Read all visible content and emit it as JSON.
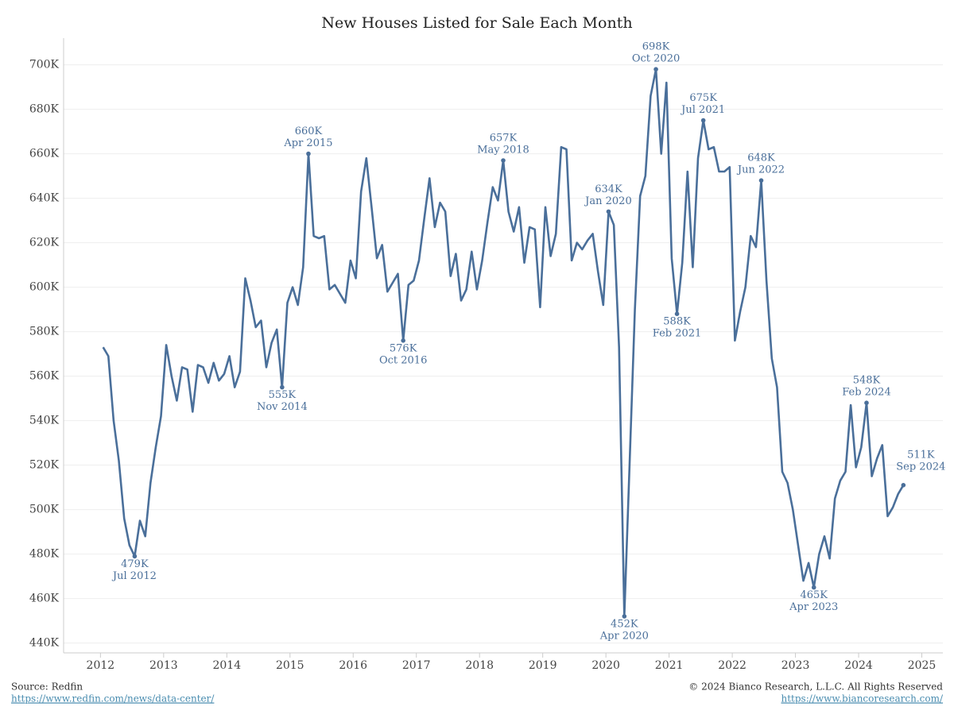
{
  "chart_data": {
    "type": "line",
    "title": "New Houses Listed for Sale Each Month",
    "x": [
      "2012-01",
      "2012-02",
      "2012-03",
      "2012-04",
      "2012-05",
      "2012-06",
      "2012-07",
      "2012-08",
      "2012-09",
      "2012-10",
      "2012-11",
      "2012-12",
      "2013-01",
      "2013-02",
      "2013-03",
      "2013-04",
      "2013-05",
      "2013-06",
      "2013-07",
      "2013-08",
      "2013-09",
      "2013-10",
      "2013-11",
      "2013-12",
      "2014-01",
      "2014-02",
      "2014-03",
      "2014-04",
      "2014-05",
      "2014-06",
      "2014-07",
      "2014-08",
      "2014-09",
      "2014-10",
      "2014-11",
      "2014-12",
      "2015-01",
      "2015-02",
      "2015-03",
      "2015-04",
      "2015-05",
      "2015-06",
      "2015-07",
      "2015-08",
      "2015-09",
      "2015-10",
      "2015-11",
      "2015-12",
      "2016-01",
      "2016-02",
      "2016-03",
      "2016-04",
      "2016-05",
      "2016-06",
      "2016-07",
      "2016-08",
      "2016-09",
      "2016-10",
      "2016-11",
      "2016-12",
      "2017-01",
      "2017-02",
      "2017-03",
      "2017-04",
      "2017-05",
      "2017-06",
      "2017-07",
      "2017-08",
      "2017-09",
      "2017-10",
      "2017-11",
      "2017-12",
      "2018-01",
      "2018-02",
      "2018-03",
      "2018-04",
      "2018-05",
      "2018-06",
      "2018-07",
      "2018-08",
      "2018-09",
      "2018-10",
      "2018-11",
      "2018-12",
      "2019-01",
      "2019-02",
      "2019-03",
      "2019-04",
      "2019-05",
      "2019-06",
      "2019-07",
      "2019-08",
      "2019-09",
      "2019-10",
      "2019-11",
      "2019-12",
      "2020-01",
      "2020-02",
      "2020-03",
      "2020-04",
      "2020-05",
      "2020-06",
      "2020-07",
      "2020-08",
      "2020-09",
      "2020-10",
      "2020-11",
      "2020-12",
      "2021-01",
      "2021-02",
      "2021-03",
      "2021-04",
      "2021-05",
      "2021-06",
      "2021-07",
      "2021-08",
      "2021-09",
      "2021-10",
      "2021-11",
      "2021-12",
      "2022-01",
      "2022-02",
      "2022-03",
      "2022-04",
      "2022-05",
      "2022-06",
      "2022-07",
      "2022-08",
      "2022-09",
      "2022-10",
      "2022-11",
      "2022-12",
      "2023-01",
      "2023-02",
      "2023-03",
      "2023-04",
      "2023-05",
      "2023-06",
      "2023-07",
      "2023-08",
      "2023-09",
      "2023-10",
      "2023-11",
      "2023-12",
      "2024-01",
      "2024-02",
      "2024-03",
      "2024-04",
      "2024-05",
      "2024-06",
      "2024-07",
      "2024-08",
      "2024-09"
    ],
    "series": [
      {
        "color": "#4a6f9a",
        "values": [
          573,
          569,
          540,
          522,
          496,
          484,
          479,
          495,
          488,
          512,
          528,
          542,
          574,
          560,
          549,
          564,
          563,
          544,
          565,
          564,
          557,
          566,
          558,
          561,
          569,
          555,
          562,
          604,
          594,
          582,
          585,
          564,
          575,
          581,
          555,
          593,
          600,
          592,
          609,
          660,
          623,
          622,
          623,
          599,
          601,
          597,
          593,
          612,
          604,
          643,
          658,
          636,
          613,
          619,
          598,
          602,
          606,
          576,
          601,
          603,
          612,
          631,
          649,
          627,
          638,
          634,
          605,
          615,
          594,
          599,
          616,
          599,
          612,
          629,
          645,
          639,
          657,
          634,
          625,
          636,
          611,
          627,
          626,
          591,
          636,
          614,
          624,
          663,
          662,
          612,
          620,
          617,
          621,
          624,
          607,
          592,
          634,
          628,
          573,
          452,
          520,
          590,
          641,
          650,
          686,
          698,
          660,
          692,
          613,
          588,
          611,
          652,
          609,
          658,
          675,
          662,
          663,
          652,
          652,
          654,
          576,
          589,
          600,
          623,
          618,
          648,
          603,
          568,
          555,
          517,
          512,
          500,
          484,
          468,
          476,
          465,
          480,
          488,
          478,
          505,
          513,
          517,
          547,
          519,
          528,
          548,
          515,
          523,
          529,
          497,
          501,
          507,
          511
        ]
      }
    ],
    "annotations": [
      {
        "x": "2012-07",
        "label": "479K",
        "date": "Jul 2012"
      },
      {
        "x": "2014-11",
        "label": "555K",
        "date": "Nov 2014"
      },
      {
        "x": "2015-04",
        "label": "660K",
        "date": "Apr 2015"
      },
      {
        "x": "2016-10",
        "label": "576K",
        "date": "Oct 2016"
      },
      {
        "x": "2018-05",
        "label": "657K",
        "date": "May 2018"
      },
      {
        "x": "2020-01",
        "label": "634K",
        "date": "Jan 2020"
      },
      {
        "x": "2020-04",
        "label": "452K",
        "date": "Apr 2020"
      },
      {
        "x": "2020-10",
        "label": "698K",
        "date": "Oct 2020"
      },
      {
        "x": "2021-02",
        "label": "588K",
        "date": "Feb 2021"
      },
      {
        "x": "2021-07",
        "label": "675K",
        "date": "Jul 2021"
      },
      {
        "x": "2022-06",
        "label": "648K",
        "date": "Jun 2022"
      },
      {
        "x": "2023-04",
        "label": "465K",
        "date": "Apr 2023"
      },
      {
        "x": "2024-02",
        "label": "548K",
        "date": "Feb 2024"
      },
      {
        "x": "2024-09",
        "label": "511K",
        "date": "Sep 2024"
      }
    ],
    "xlim": [
      "2011-06",
      "2025-05"
    ],
    "xticks": [
      2012,
      2013,
      2014,
      2015,
      2016,
      2017,
      2018,
      2019,
      2020,
      2021,
      2022,
      2023,
      2024,
      2025
    ],
    "ylim": [
      437,
      712
    ],
    "yticks": [
      {
        "value": 440,
        "label": "440K"
      },
      {
        "value": 460,
        "label": "460K"
      },
      {
        "value": 480,
        "label": "480K"
      },
      {
        "value": 500,
        "label": "500K"
      },
      {
        "value": 520,
        "label": "520K"
      },
      {
        "value": 540,
        "label": "540K"
      },
      {
        "value": 560,
        "label": "560K"
      },
      {
        "value": 580,
        "label": "580K"
      },
      {
        "value": 600,
        "label": "600K"
      },
      {
        "value": 620,
        "label": "620K"
      },
      {
        "value": 640,
        "label": "640K"
      },
      {
        "value": 660,
        "label": "660K"
      },
      {
        "value": 680,
        "label": "680K"
      },
      {
        "value": 700,
        "label": "700K"
      }
    ],
    "grid": true
  },
  "footer": {
    "source": "Source: Redfin",
    "source_url": "https://www.redfin.com/news/data-center/",
    "copyright": "© 2024 Bianco Research, L.L.C. All Rights Reserved",
    "site_url": "https://www.biancoresearch.com/"
  }
}
